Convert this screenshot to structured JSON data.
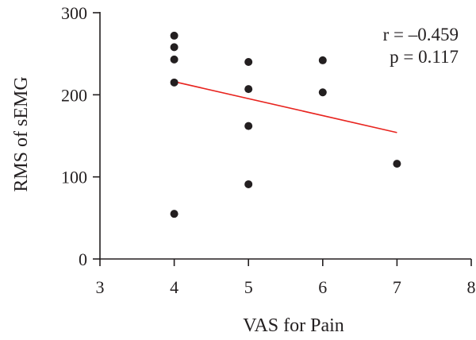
{
  "chart_data": {
    "type": "scatter",
    "title": "",
    "xlabel": "VAS for Pain",
    "ylabel": "RMS of sEMG",
    "xlim": [
      3,
      8
    ],
    "ylim": [
      0,
      300
    ],
    "xticks": [
      3,
      4,
      5,
      6,
      7,
      8
    ],
    "yticks": [
      0,
      100,
      200,
      300
    ],
    "grid": false,
    "series": [
      {
        "points": [
          {
            "x": 4,
            "y": 272
          },
          {
            "x": 4,
            "y": 258
          },
          {
            "x": 4,
            "y": 243
          },
          {
            "x": 4,
            "y": 215
          },
          {
            "x": 4,
            "y": 55
          },
          {
            "x": 5,
            "y": 240
          },
          {
            "x": 5,
            "y": 207
          },
          {
            "x": 5,
            "y": 162
          },
          {
            "x": 5,
            "y": 91
          },
          {
            "x": 6,
            "y": 242
          },
          {
            "x": 6,
            "y": 203
          },
          {
            "x": 7,
            "y": 116
          }
        ],
        "color": "#231f20"
      }
    ],
    "trendline": {
      "x": [
        4,
        7
      ],
      "y": [
        216,
        154
      ],
      "color": "#e8241f"
    },
    "annotations": [
      "r = –0.459",
      "p = 0.117"
    ]
  }
}
